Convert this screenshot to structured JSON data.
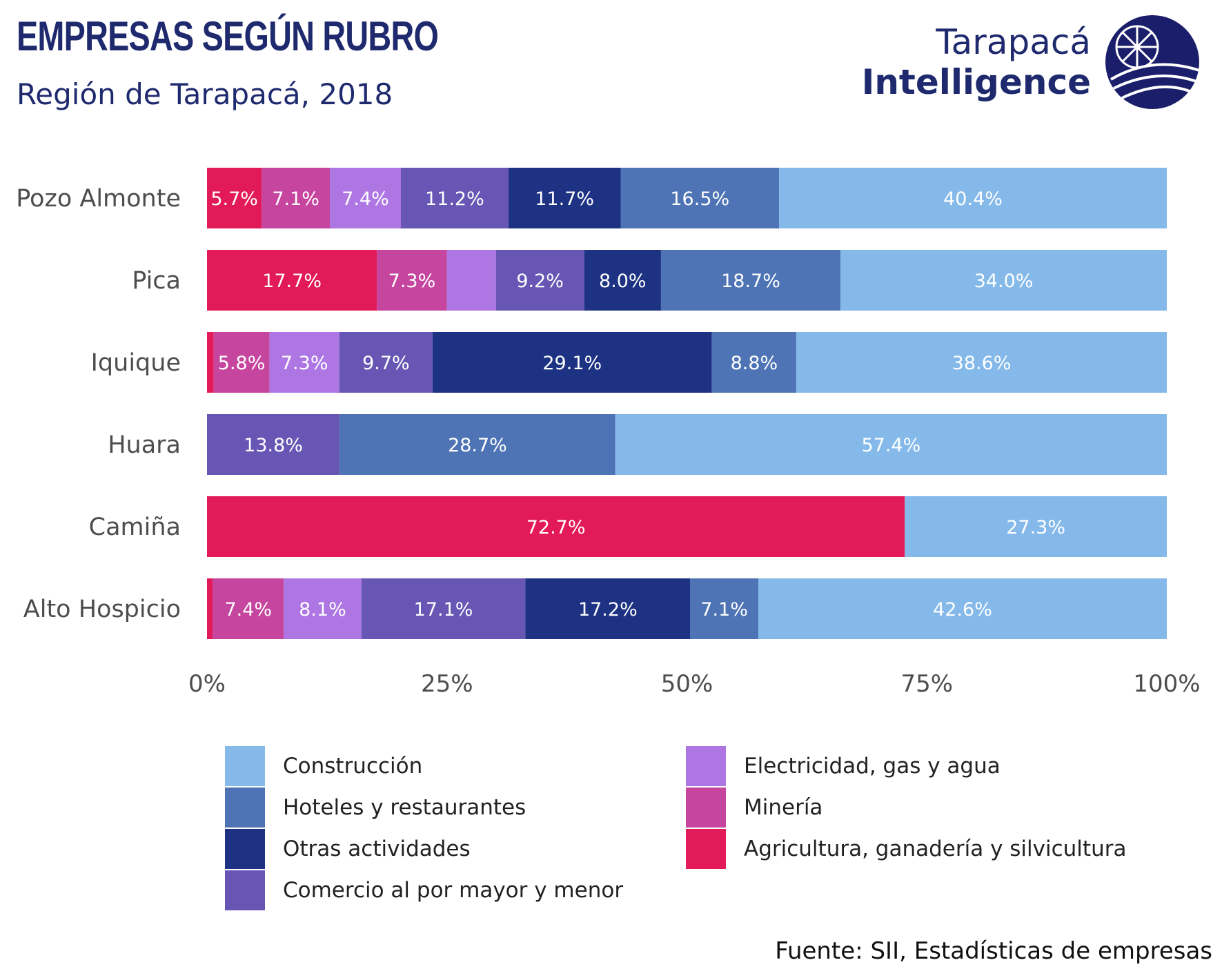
{
  "title": "EMPRESAS SEGÚN RUBRO",
  "subtitle": "Región de Tarapacá, 2018",
  "logo": {
    "line1": "Tarapacá",
    "line2": "Intelligence",
    "icon": "globe-emblem-icon",
    "color": "#1b1f6b"
  },
  "source": "Fuente: SII, Estadísticas de empresas",
  "chart_data": {
    "type": "bar",
    "orientation": "horizontal",
    "stacked": "percent",
    "categories": [
      "Pozo Almonte",
      "Pica",
      "Iquique",
      "Huara",
      "Camiña",
      "Alto Hospicio"
    ],
    "series": [
      {
        "name": "Agricultura, ganadería y silvicultura",
        "color": "#e21a59",
        "values": [
          5.7,
          17.7,
          0.7,
          0,
          72.7,
          0.6
        ],
        "labels": [
          "5.7%",
          "17.7%",
          "",
          "",
          "72.7%",
          ""
        ]
      },
      {
        "name": "Minería",
        "color": "#c6459f",
        "values": [
          7.1,
          7.3,
          5.8,
          0,
          0,
          7.4
        ],
        "labels": [
          "7.1%",
          "7.3%",
          "5.8%",
          "",
          "",
          "7.4%"
        ]
      },
      {
        "name": "Electricidad, gas y agua",
        "color": "#ad76e3",
        "values": [
          7.4,
          5.1,
          7.3,
          0,
          0,
          8.1
        ],
        "labels": [
          "7.4%",
          "",
          "7.3%",
          "",
          "",
          "8.1%"
        ]
      },
      {
        "name": "Comercio al por mayor y menor",
        "color": "#6756b4",
        "values": [
          11.2,
          9.2,
          9.7,
          13.8,
          0,
          17.1
        ],
        "labels": [
          "11.2%",
          "9.2%",
          "9.7%",
          "13.8%",
          "",
          "17.1%"
        ]
      },
      {
        "name": "Otras actividades",
        "color": "#1e3283",
        "values": [
          11.7,
          8.0,
          29.1,
          0,
          0,
          17.2
        ],
        "labels": [
          "11.7%",
          "8.0%",
          "29.1%",
          "",
          "",
          "17.2%"
        ]
      },
      {
        "name": "Hoteles y restaurantes",
        "color": "#4e74b5",
        "values": [
          16.5,
          18.7,
          8.8,
          28.7,
          0,
          7.1
        ],
        "labels": [
          "16.5%",
          "18.7%",
          "8.8%",
          "28.7%",
          "",
          "7.1%"
        ]
      },
      {
        "name": "Construcción",
        "color": "#84b9ea",
        "values": [
          40.4,
          34.0,
          38.6,
          57.4,
          27.3,
          42.6
        ],
        "labels": [
          "40.4%",
          "34.0%",
          "38.6%",
          "57.4%",
          "27.3%",
          "42.6%"
        ]
      }
    ],
    "xlim": [
      0,
      100
    ],
    "xticks": [
      "0%",
      "25%",
      "50%",
      "75%",
      "100%"
    ],
    "xlabel": "",
    "ylabel": "",
    "grid": false,
    "legend_position": "bottom",
    "legend_order": [
      "Construcción",
      "Hoteles y restaurantes",
      "Otras actividades",
      "Comercio al por mayor y menor",
      "Electricidad, gas y agua",
      "Minería",
      "Agricultura, ganadería y silvicultura"
    ]
  }
}
